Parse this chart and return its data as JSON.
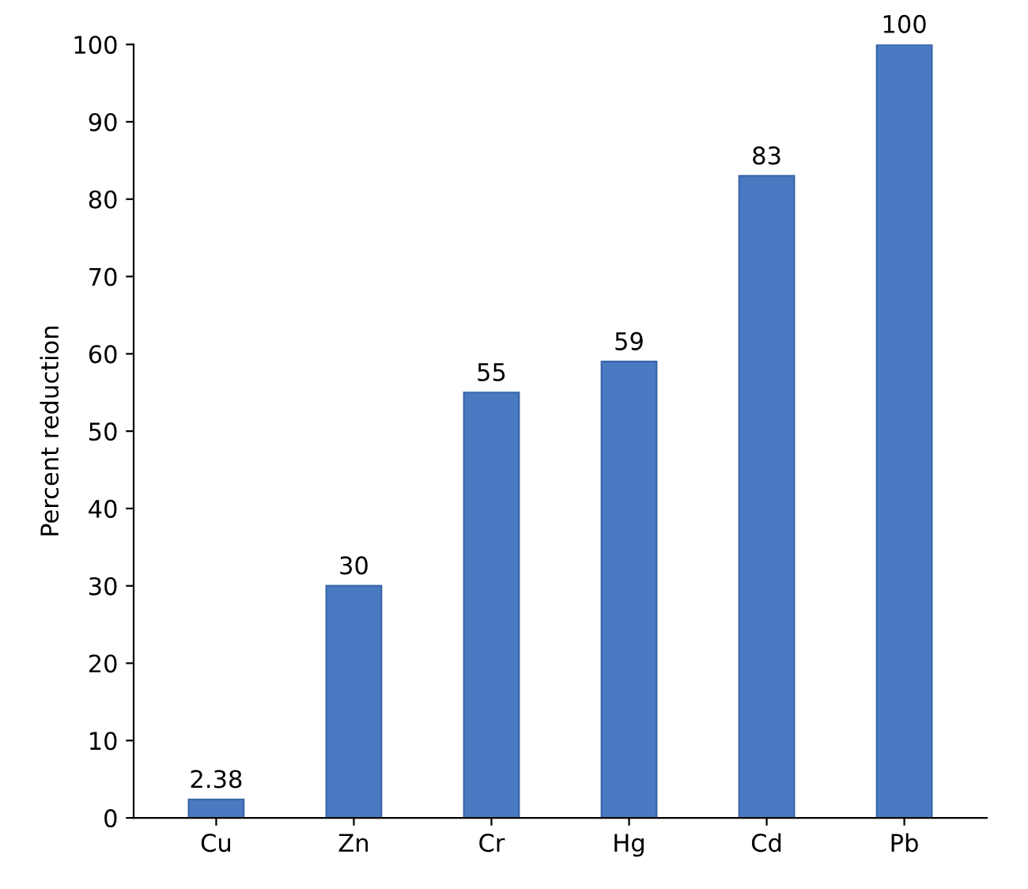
{
  "chart_data": {
    "type": "bar",
    "ylabel": "Percent reduction",
    "categories": [
      "Cu",
      "Zn",
      "Cr",
      "Hg",
      "Cd",
      "Pb"
    ],
    "values": [
      2.38,
      30,
      55,
      59,
      83,
      100
    ],
    "color": "#4a7ac2",
    "ylim": [
      0,
      100
    ],
    "yticks": [
      0,
      10,
      20,
      30,
      40,
      50,
      60,
      70,
      80,
      90,
      100
    ],
    "data_labels": true,
    "grid": false
  }
}
